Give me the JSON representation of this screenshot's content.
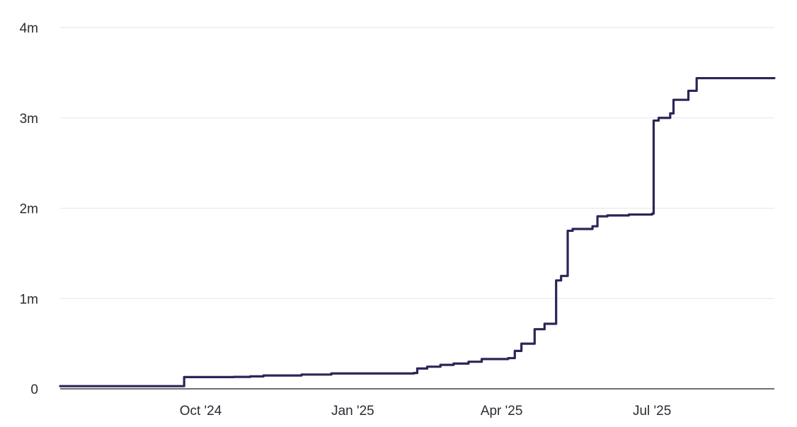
{
  "chart_data": {
    "type": "line",
    "title": "",
    "xlabel": "",
    "ylabel": "",
    "x_type": "date",
    "xlim": [
      "2024-07-08",
      "2025-09-13"
    ],
    "ylim": [
      0,
      4000000
    ],
    "grid": true,
    "legend": "none",
    "y_ticks": [
      {
        "value": 0,
        "label": "0"
      },
      {
        "value": 1000000,
        "label": "1m"
      },
      {
        "value": 2000000,
        "label": "2m"
      },
      {
        "value": 3000000,
        "label": "3m"
      },
      {
        "value": 4000000,
        "label": "4m"
      }
    ],
    "x_ticks": [
      {
        "value": "2024-10-01",
        "label": "Oct '24"
      },
      {
        "value": "2025-01-01",
        "label": "Jan '25"
      },
      {
        "value": "2025-04-01",
        "label": "Apr '25"
      },
      {
        "value": "2025-07-01",
        "label": "Jul '25"
      }
    ],
    "series": [
      {
        "color": "#2b2657",
        "step": true,
        "points": [
          {
            "x": "2024-07-08",
            "y": 30000
          },
          {
            "x": "2024-09-20",
            "y": 30000
          },
          {
            "x": "2024-09-21",
            "y": 130000
          },
          {
            "x": "2024-10-21",
            "y": 132000
          },
          {
            "x": "2024-10-31",
            "y": 138000
          },
          {
            "x": "2024-11-08",
            "y": 148000
          },
          {
            "x": "2024-12-01",
            "y": 158000
          },
          {
            "x": "2024-12-19",
            "y": 170000
          },
          {
            "x": "2025-02-07",
            "y": 175000
          },
          {
            "x": "2025-02-09",
            "y": 225000
          },
          {
            "x": "2025-02-15",
            "y": 245000
          },
          {
            "x": "2025-02-23",
            "y": 265000
          },
          {
            "x": "2025-03-03",
            "y": 280000
          },
          {
            "x": "2025-03-12",
            "y": 300000
          },
          {
            "x": "2025-03-20",
            "y": 330000
          },
          {
            "x": "2025-04-05",
            "y": 340000
          },
          {
            "x": "2025-04-09",
            "y": 420000
          },
          {
            "x": "2025-04-13",
            "y": 500000
          },
          {
            "x": "2025-04-21",
            "y": 660000
          },
          {
            "x": "2025-04-27",
            "y": 720000
          },
          {
            "x": "2025-05-04",
            "y": 1200000
          },
          {
            "x": "2025-05-07",
            "y": 1250000
          },
          {
            "x": "2025-05-11",
            "y": 1750000
          },
          {
            "x": "2025-05-14",
            "y": 1770000
          },
          {
            "x": "2025-05-26",
            "y": 1800000
          },
          {
            "x": "2025-05-29",
            "y": 1910000
          },
          {
            "x": "2025-06-04",
            "y": 1920000
          },
          {
            "x": "2025-06-17",
            "y": 1930000
          },
          {
            "x": "2025-07-01",
            "y": 1940000
          },
          {
            "x": "2025-07-02",
            "y": 2970000
          },
          {
            "x": "2025-07-05",
            "y": 3000000
          },
          {
            "x": "2025-07-12",
            "y": 3050000
          },
          {
            "x": "2025-07-14",
            "y": 3200000
          },
          {
            "x": "2025-07-23",
            "y": 3300000
          },
          {
            "x": "2025-07-28",
            "y": 3440000
          },
          {
            "x": "2025-09-13",
            "y": 3440000
          }
        ]
      }
    ]
  }
}
